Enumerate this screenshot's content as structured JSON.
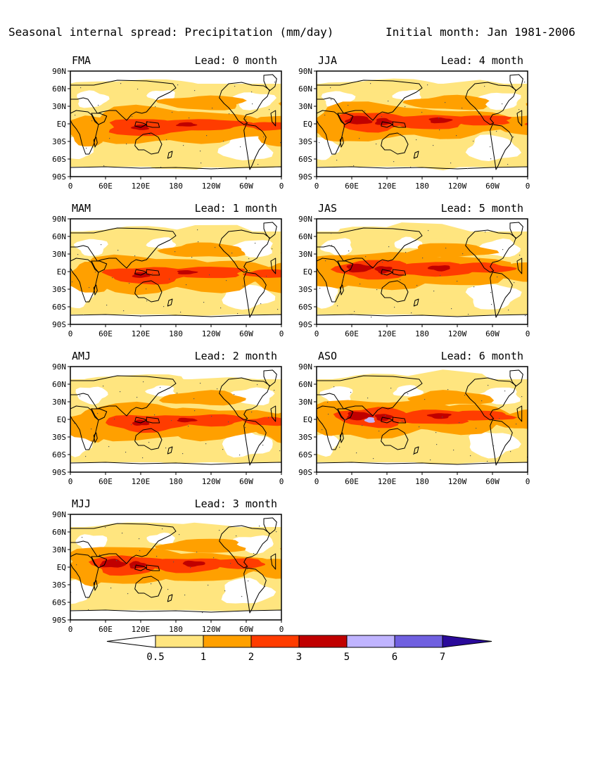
{
  "figure": {
    "title": "Seasonal internal spread: Precipitation (mm/day)",
    "subtitle": "Initial month: Jan 1981-2006"
  },
  "lat_labels": [
    "90N",
    "60N",
    "30N",
    "EQ",
    "30S",
    "60S",
    "90S"
  ],
  "lon_labels": [
    "0",
    "60E",
    "120E",
    "180",
    "120W",
    "60W",
    "0"
  ],
  "panels": [
    {
      "season": "FMA",
      "lead_label": "Lead: 0 month",
      "lead": 0
    },
    {
      "season": "MAM",
      "lead_label": "Lead: 1 month",
      "lead": 1
    },
    {
      "season": "AMJ",
      "lead_label": "Lead: 2 month",
      "lead": 2
    },
    {
      "season": "MJJ",
      "lead_label": "Lead: 3 month",
      "lead": 3
    },
    {
      "season": "JJA",
      "lead_label": "Lead: 4 month",
      "lead": 4
    },
    {
      "season": "JAS",
      "lead_label": "Lead: 5 month",
      "lead": 5
    },
    {
      "season": "ASO",
      "lead_label": "Lead: 6 month",
      "lead": 6
    }
  ],
  "colorbar": {
    "labels": [
      "0.5",
      "1",
      "2",
      "3",
      "5",
      "6",
      "7"
    ],
    "colors": [
      "#ffffff",
      "#ffe57f",
      "#ffa000",
      "#ff3c00",
      "#c00000",
      "#c0b4ff",
      "#7060e0",
      "#2a0a9a"
    ]
  },
  "colors": {
    "land_outline": "#000000",
    "frame": "#000000",
    "background": "#ffffff"
  }
}
